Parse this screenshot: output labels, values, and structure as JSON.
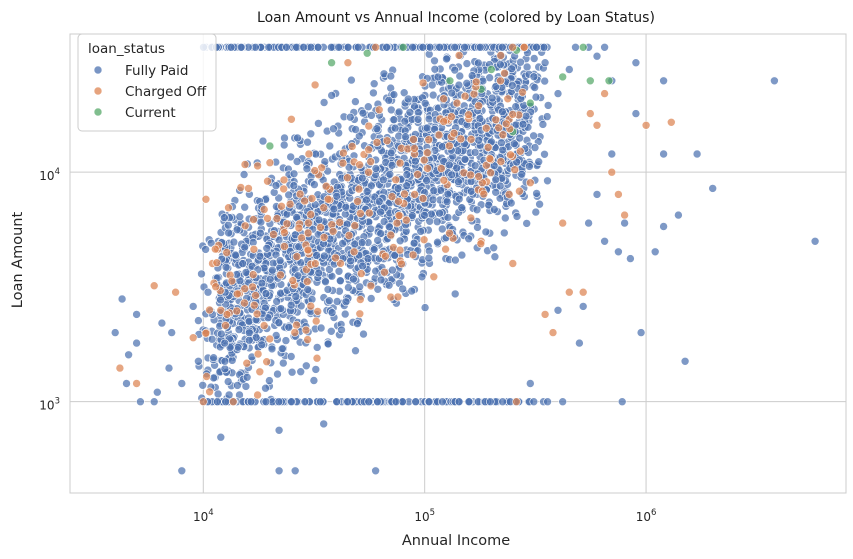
{
  "chart_data": {
    "type": "scatter",
    "title": "Loan Amount vs Annual Income (colored by Loan Status)",
    "xlabel": "Annual Income",
    "ylabel": "Loan Amount",
    "xscale": "log",
    "yscale": "log",
    "xlim": [
      2500,
      8000000
    ],
    "ylim": [
      400,
      40000
    ],
    "xticks": [
      {
        "value": 10000,
        "base": "10",
        "exp": "4"
      },
      {
        "value": 100000,
        "base": "10",
        "exp": "5"
      },
      {
        "value": 1000000,
        "base": "10",
        "exp": "6"
      }
    ],
    "yticks": [
      {
        "value": 1000,
        "base": "10",
        "exp": "3"
      },
      {
        "value": 10000,
        "base": "10",
        "exp": "4"
      }
    ],
    "grid": true,
    "legend": {
      "title": "loan_status",
      "placement": "top-left"
    },
    "series": [
      {
        "name": "Fully Paid",
        "color": "#4c72b0",
        "points": [
          [
            4000,
            2000
          ],
          [
            4300,
            2800
          ],
          [
            4500,
            1200
          ],
          [
            4600,
            1600
          ],
          [
            5000,
            1800
          ],
          [
            5000,
            2400
          ],
          [
            5200,
            1000
          ],
          [
            6000,
            1000
          ],
          [
            6200,
            1100
          ],
          [
            6500,
            2200
          ],
          [
            7000,
            1400
          ],
          [
            7200,
            2000
          ],
          [
            8000,
            500
          ],
          [
            8000,
            1200
          ],
          [
            9000,
            2600
          ],
          [
            9500,
            1500
          ],
          [
            10500,
            3000
          ],
          [
            11000,
            2400
          ],
          [
            12000,
            700
          ],
          [
            12500,
            1800
          ],
          [
            26000,
            500
          ],
          [
            22000,
            750
          ],
          [
            22000,
            500
          ],
          [
            35000,
            800
          ],
          [
            60000,
            500
          ],
          [
            300000,
            1200
          ],
          [
            400000,
            2500
          ],
          [
            420000,
            1000
          ],
          [
            500000,
            1800
          ],
          [
            520000,
            2600
          ],
          [
            550000,
            6000
          ],
          [
            600000,
            8000
          ],
          [
            650000,
            5000
          ],
          [
            700000,
            12000
          ],
          [
            750000,
            4500
          ],
          [
            780000,
            1000
          ],
          [
            800000,
            6000
          ],
          [
            850000,
            4200
          ],
          [
            900000,
            18000
          ],
          [
            950000,
            2000
          ],
          [
            1100000,
            4500
          ],
          [
            1200000,
            5800
          ],
          [
            1200000,
            12000
          ],
          [
            1200000,
            25000
          ],
          [
            1400000,
            6500
          ],
          [
            1500000,
            1500
          ],
          [
            1700000,
            12000
          ],
          [
            2000000,
            8500
          ],
          [
            3800000,
            25000
          ],
          [
            5800000,
            5000
          ],
          [
            320000,
            35000
          ],
          [
            350000,
            30000
          ],
          [
            400000,
            22000
          ],
          [
            450000,
            28000
          ],
          [
            480000,
            35000
          ],
          [
            550000,
            35000
          ],
          [
            600000,
            32000
          ],
          [
            650000,
            35000
          ],
          [
            700000,
            25000
          ],
          [
            900000,
            30000
          ]
        ]
      },
      {
        "name": "Charged Off",
        "color": "#dd8452",
        "points": [
          [
            4200,
            1400
          ],
          [
            5000,
            1200
          ],
          [
            6000,
            3200
          ],
          [
            7500,
            3000
          ],
          [
            9000,
            1900
          ],
          [
            10000,
            1000
          ],
          [
            12000,
            2500
          ],
          [
            11000,
            4000
          ],
          [
            13000,
            7000
          ],
          [
            16000,
            8500
          ],
          [
            20000,
            11000
          ],
          [
            25000,
            17000
          ],
          [
            32000,
            24000
          ],
          [
            45000,
            30000
          ],
          [
            60000,
            35000
          ],
          [
            90000,
            12000
          ],
          [
            140000,
            20000
          ],
          [
            220000,
            25000
          ],
          [
            300000,
            9000
          ],
          [
            350000,
            2400
          ],
          [
            380000,
            2000
          ],
          [
            420000,
            6000
          ],
          [
            450000,
            3000
          ],
          [
            520000,
            3000
          ],
          [
            560000,
            18000
          ],
          [
            600000,
            16000
          ],
          [
            650000,
            22000
          ],
          [
            700000,
            10000
          ],
          [
            750000,
            8000
          ],
          [
            800000,
            6500
          ],
          [
            1000000,
            16000
          ],
          [
            1300000,
            16500
          ],
          [
            30000,
            12000
          ],
          [
            35000,
            7000
          ],
          [
            48000,
            4500
          ],
          [
            75000,
            6000
          ],
          [
            110000,
            3500
          ],
          [
            180000,
            5000
          ],
          [
            250000,
            4000
          ],
          [
            260000,
            1000
          ]
        ]
      },
      {
        "name": "Current",
        "color": "#55a868",
        "points": [
          [
            20000,
            13000
          ],
          [
            38000,
            30000
          ],
          [
            55000,
            33000
          ],
          [
            80000,
            35000
          ],
          [
            130000,
            25000
          ],
          [
            200000,
            28000
          ],
          [
            260000,
            34000
          ],
          [
            300000,
            20000
          ],
          [
            420000,
            26000
          ],
          [
            520000,
            35000
          ],
          [
            560000,
            25000
          ],
          [
            680000,
            25000
          ],
          [
            250000,
            15000
          ],
          [
            180000,
            23000
          ]
        ]
      }
    ]
  }
}
